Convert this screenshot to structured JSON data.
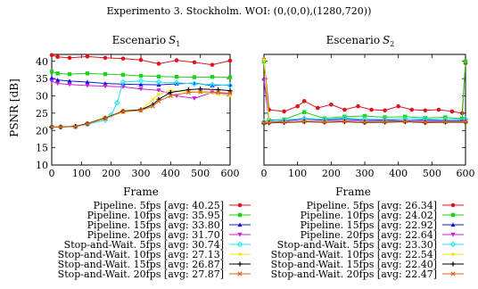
{
  "figure": {
    "title": "Experimento 3. Stockholm. WOI: (0,(0,0),(1280,720))",
    "ylabel": "PSNR [dB]"
  },
  "colors": {
    "red": "#e0141e",
    "green": "#1ed21e",
    "blue": "#1418dc",
    "magenta": "#c822dc",
    "cyan": "#1ee6f0",
    "yellow": "#f0e61e",
    "black": "#000000",
    "orange": "#e0641e"
  },
  "chart_data": [
    {
      "type": "line",
      "title": "Escenario",
      "title_sub": "1",
      "xlabel": "Frame",
      "ylabel": "PSNR [dB]",
      "xlim": [
        0,
        600
      ],
      "ylim": [
        10,
        42
      ],
      "xticks": [
        0,
        100,
        200,
        300,
        400,
        500,
        600
      ],
      "yticks": [
        10,
        15,
        20,
        25,
        30,
        35,
        40
      ],
      "series": [
        {
          "name": "Pipeline. 5fps [avg: 40.25]",
          "color": "red",
          "marker": "circle",
          "x": [
            0,
            20,
            60,
            120,
            180,
            240,
            300,
            360,
            420,
            480,
            540,
            600
          ],
          "y": [
            41.8,
            41.3,
            41.0,
            41.4,
            41.0,
            40.8,
            40.4,
            39.3,
            40.3,
            39.7,
            39.0,
            40.2
          ]
        },
        {
          "name": "Pipeline. 10fps [avg: 35.95]",
          "color": "green",
          "marker": "square",
          "x": [
            0,
            20,
            60,
            120,
            180,
            240,
            300,
            360,
            420,
            480,
            540,
            600
          ],
          "y": [
            37.0,
            36.5,
            36.3,
            36.5,
            36.3,
            36.1,
            35.8,
            35.6,
            35.5,
            35.4,
            35.5,
            35.4
          ]
        },
        {
          "name": "Pipeline. 15fps [avg: 33.80]",
          "color": "blue",
          "marker": "triangle",
          "x": [
            0,
            20,
            60,
            120,
            180,
            240,
            300,
            360,
            420,
            480,
            540,
            600
          ],
          "y": [
            35.2,
            34.6,
            34.3,
            34.0,
            33.6,
            33.4,
            33.3,
            33.2,
            33.5,
            33.7,
            33.0,
            33.2
          ]
        },
        {
          "name": "Pipeline. 20fps [avg: 31.70]",
          "color": "magenta",
          "marker": "triangle-down",
          "x": [
            0,
            20,
            60,
            120,
            180,
            240,
            300,
            360,
            420,
            480,
            540,
            600
          ],
          "y": [
            34.2,
            33.6,
            33.3,
            33.0,
            32.8,
            32.6,
            32.0,
            31.6,
            30.0,
            29.3,
            31.0,
            30.5
          ]
        },
        {
          "name": "Stop-and-Wait. 5fps [avg: 30.74]",
          "color": "cyan",
          "marker": "diamond",
          "x": [
            0,
            30,
            80,
            120,
            180,
            200,
            220,
            240,
            300,
            360,
            420,
            480,
            540,
            600
          ],
          "y": [
            21.0,
            21.0,
            21.1,
            21.8,
            23.0,
            24.5,
            28.0,
            34.0,
            34.3,
            34.0,
            33.8,
            33.5,
            33.3,
            33.0
          ]
        },
        {
          "name": "Stop-and-Wait. 10fps [avg: 27.13]",
          "color": "yellow",
          "marker": "star",
          "x": [
            0,
            30,
            80,
            120,
            180,
            240,
            300,
            340,
            360,
            400,
            460,
            500,
            560,
            600
          ],
          "y": [
            21.0,
            21.0,
            21.2,
            22.0,
            23.8,
            25.2,
            26.0,
            29.0,
            30.5,
            31.5,
            31.3,
            31.0,
            30.5,
            30.0
          ]
        },
        {
          "name": "Stop-and-Wait. 15fps [avg: 26.87]",
          "color": "black",
          "marker": "plus",
          "x": [
            0,
            30,
            80,
            120,
            180,
            240,
            300,
            340,
            360,
            400,
            460,
            500,
            560,
            600
          ],
          "y": [
            21.0,
            21.0,
            21.2,
            22.0,
            23.6,
            25.6,
            26.0,
            27.5,
            29.0,
            31.0,
            31.8,
            32.0,
            31.8,
            31.5
          ]
        },
        {
          "name": "Stop-and-Wait. 20fps [avg: 27.87]",
          "color": "orange",
          "marker": "cross",
          "x": [
            0,
            30,
            80,
            120,
            180,
            240,
            300,
            340,
            360,
            400,
            460,
            500,
            560,
            600
          ],
          "y": [
            21.0,
            21.0,
            21.1,
            21.9,
            23.5,
            25.5,
            25.8,
            27.0,
            28.5,
            30.0,
            31.0,
            31.2,
            31.0,
            30.8
          ]
        }
      ]
    },
    {
      "type": "line",
      "title": "Escenario",
      "title_sub": "2",
      "xlabel": "Frame",
      "ylabel": "",
      "xlim": [
        0,
        600
      ],
      "ylim": [
        10,
        42
      ],
      "xticks": [
        0,
        100,
        200,
        300,
        400,
        500,
        600
      ],
      "yticks": [
        10,
        15,
        20,
        25,
        30,
        35,
        40
      ],
      "series": [
        {
          "name": "Pipeline. 5fps [avg: 26.34]",
          "color": "red",
          "marker": "circle",
          "x": [
            0,
            15,
            60,
            100,
            120,
            160,
            200,
            240,
            280,
            320,
            360,
            400,
            440,
            480,
            520,
            560,
            590,
            600
          ],
          "y": [
            40.5,
            26.0,
            25.5,
            27.0,
            28.5,
            26.5,
            27.5,
            26.0,
            27.0,
            26.0,
            25.8,
            27.0,
            26.0,
            25.8,
            26.0,
            25.5,
            25.0,
            39.5
          ]
        },
        {
          "name": "Pipeline. 10fps [avg: 24.02]",
          "color": "green",
          "marker": "square",
          "x": [
            0,
            15,
            60,
            120,
            180,
            240,
            300,
            360,
            420,
            480,
            540,
            590,
            600
          ],
          "y": [
            40.0,
            23.0,
            23.2,
            25.3,
            23.5,
            24.0,
            24.2,
            23.8,
            24.0,
            23.6,
            23.8,
            23.4,
            40.0
          ]
        },
        {
          "name": "Pipeline. 15fps [avg: 22.92]",
          "color": "blue",
          "marker": "triangle",
          "x": [
            0,
            15,
            60,
            120,
            180,
            240,
            300,
            360,
            420,
            480,
            540,
            600
          ],
          "y": [
            35.0,
            23.0,
            22.8,
            23.3,
            23.0,
            23.3,
            22.9,
            23.0,
            22.8,
            23.0,
            22.8,
            22.9
          ]
        },
        {
          "name": "Pipeline. 20fps [avg: 22.64]",
          "color": "magenta",
          "marker": "triangle-down",
          "x": [
            0,
            15,
            60,
            120,
            180,
            240,
            300,
            360,
            420,
            480,
            540,
            600
          ],
          "y": [
            34.5,
            22.5,
            22.5,
            22.7,
            22.6,
            22.8,
            22.5,
            22.7,
            22.5,
            22.6,
            22.5,
            22.6
          ]
        },
        {
          "name": "Stop-and-Wait. 5fps [avg: 23.30]",
          "color": "cyan",
          "marker": "diamond",
          "x": [
            0,
            15,
            60,
            120,
            180,
            240,
            300,
            360,
            420,
            480,
            540,
            600
          ],
          "y": [
            22.5,
            22.8,
            23.0,
            23.5,
            23.2,
            23.6,
            23.3,
            23.2,
            23.4,
            23.3,
            23.2,
            23.3
          ]
        },
        {
          "name": "Stop-and-Wait. 10fps [avg: 22.54]",
          "color": "yellow",
          "marker": "star",
          "x": [
            0,
            15,
            60,
            120,
            180,
            240,
            300,
            360,
            420,
            480,
            540,
            600
          ],
          "y": [
            40.5,
            22.3,
            22.4,
            22.6,
            22.5,
            22.6,
            22.4,
            22.5,
            22.6,
            22.3,
            22.4,
            22.5
          ]
        },
        {
          "name": "Stop-and-Wait. 15fps [avg: 22.40]",
          "color": "black",
          "marker": "plus",
          "x": [
            0,
            15,
            60,
            120,
            180,
            240,
            300,
            360,
            420,
            480,
            540,
            600
          ],
          "y": [
            22.0,
            22.2,
            22.3,
            22.5,
            22.4,
            22.5,
            22.3,
            22.4,
            22.5,
            22.3,
            22.4,
            22.4
          ]
        },
        {
          "name": "Stop-and-Wait. 20fps [avg: 22.47]",
          "color": "orange",
          "marker": "cross",
          "x": [
            0,
            15,
            60,
            120,
            180,
            240,
            300,
            360,
            420,
            480,
            540,
            600
          ],
          "y": [
            22.2,
            22.3,
            22.4,
            22.6,
            22.5,
            22.6,
            22.4,
            22.5,
            22.6,
            22.4,
            22.5,
            22.5
          ]
        }
      ]
    }
  ]
}
